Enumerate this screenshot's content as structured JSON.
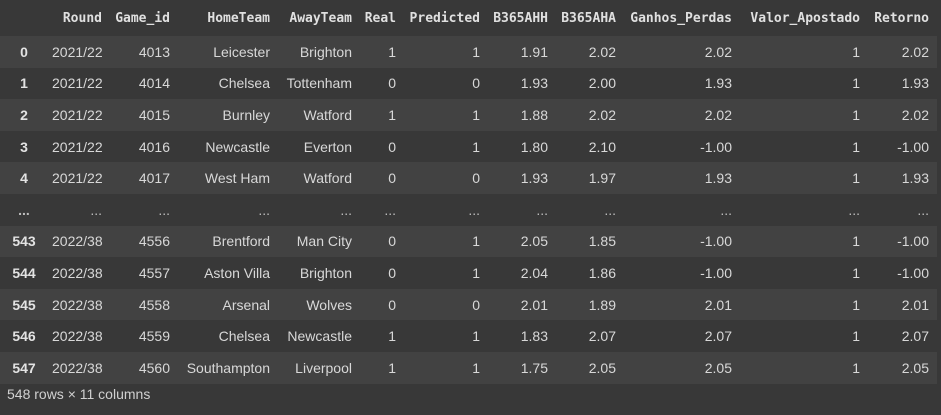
{
  "dataframe": {
    "columns": [
      "",
      "Round",
      "Game_id",
      "HomeTeam",
      "AwayTeam",
      "Real",
      "Predicted",
      "B365AHH",
      "B365AHA",
      "Ganhos_Perdas",
      "Valor_Apostado",
      "Retorno"
    ],
    "rows": [
      [
        "0",
        "2021/22",
        "4013",
        "Leicester",
        "Brighton",
        "1",
        "1",
        "1.91",
        "2.02",
        "2.02",
        "1",
        "2.02"
      ],
      [
        "1",
        "2021/22",
        "4014",
        "Chelsea",
        "Tottenham",
        "0",
        "0",
        "1.93",
        "2.00",
        "1.93",
        "1",
        "1.93"
      ],
      [
        "2",
        "2021/22",
        "4015",
        "Burnley",
        "Watford",
        "1",
        "1",
        "1.88",
        "2.02",
        "2.02",
        "1",
        "2.02"
      ],
      [
        "3",
        "2021/22",
        "4016",
        "Newcastle",
        "Everton",
        "0",
        "1",
        "1.80",
        "2.10",
        "-1.00",
        "1",
        "-1.00"
      ],
      [
        "4",
        "2021/22",
        "4017",
        "West Ham",
        "Watford",
        "0",
        "0",
        "1.93",
        "1.97",
        "1.93",
        "1",
        "1.93"
      ],
      [
        "...",
        "...",
        "...",
        "...",
        "...",
        "...",
        "...",
        "...",
        "...",
        "...",
        "...",
        "..."
      ],
      [
        "543",
        "2022/38",
        "4556",
        "Brentford",
        "Man City",
        "0",
        "1",
        "2.05",
        "1.85",
        "-1.00",
        "1",
        "-1.00"
      ],
      [
        "544",
        "2022/38",
        "4557",
        "Aston Villa",
        "Brighton",
        "0",
        "1",
        "2.04",
        "1.86",
        "-1.00",
        "1",
        "-1.00"
      ],
      [
        "545",
        "2022/38",
        "4558",
        "Arsenal",
        "Wolves",
        "0",
        "0",
        "2.01",
        "1.89",
        "2.01",
        "1",
        "2.01"
      ],
      [
        "546",
        "2022/38",
        "4559",
        "Chelsea",
        "Newcastle",
        "1",
        "1",
        "1.83",
        "2.07",
        "2.07",
        "1",
        "2.07"
      ],
      [
        "547",
        "2022/38",
        "4560",
        "Southampton",
        "Liverpool",
        "1",
        "1",
        "1.75",
        "2.05",
        "2.05",
        "1",
        "2.05"
      ]
    ],
    "shape_text": "548 rows × 11 columns"
  },
  "colors": {
    "background": "#383838",
    "stripe": "#424242",
    "text": "#d5d5d5"
  }
}
